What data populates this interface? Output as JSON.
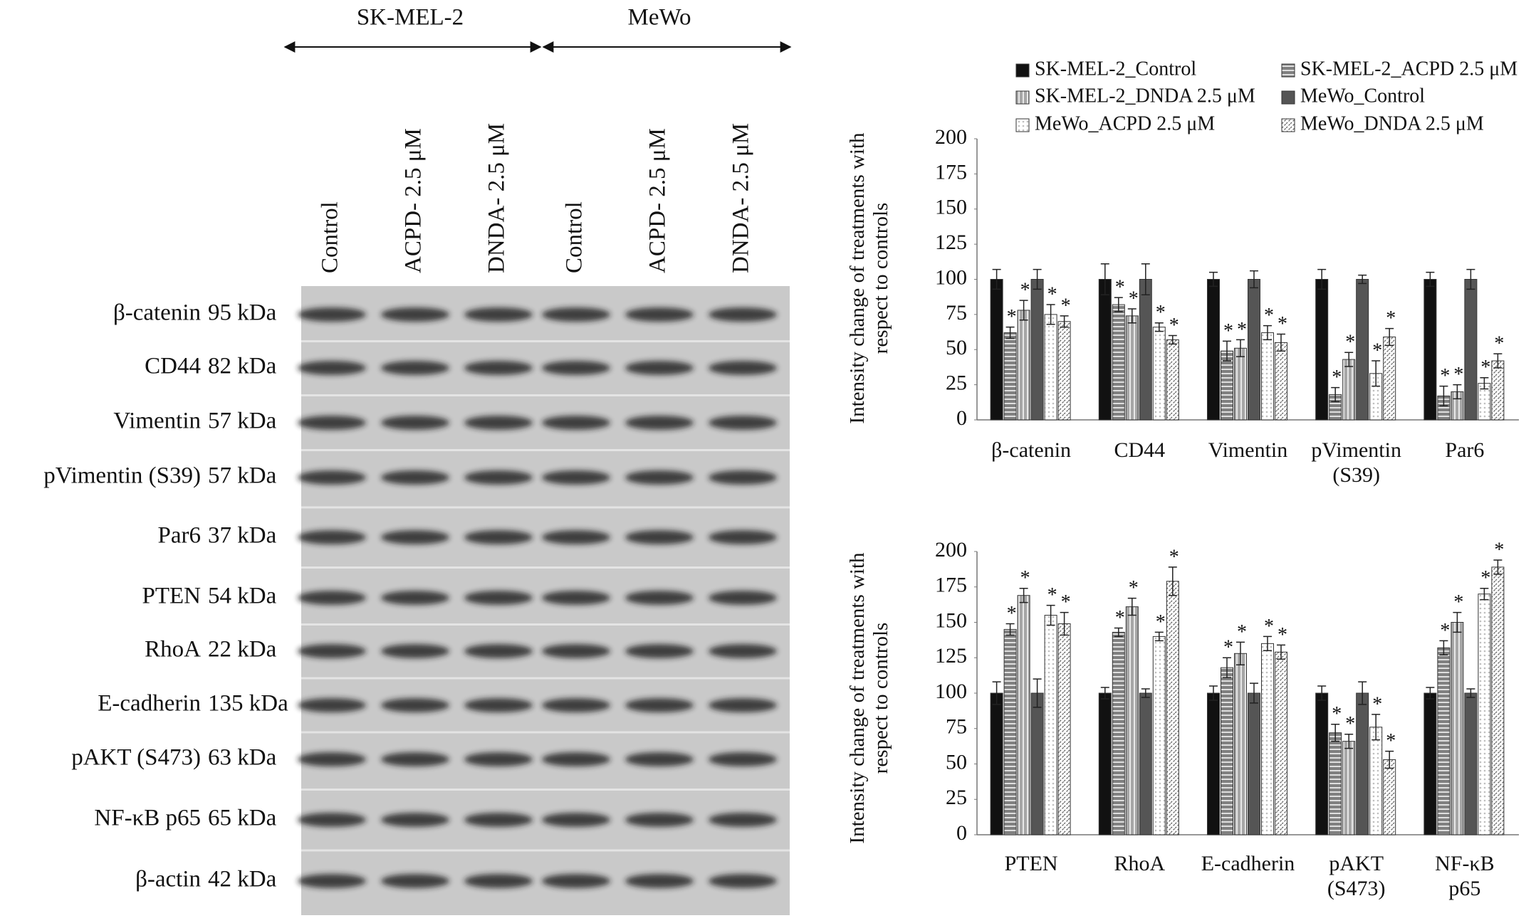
{
  "blot": {
    "groups": [
      "SK-MEL-2",
      "MeWo"
    ],
    "lanes": [
      "Control",
      "ACPD- 2.5 μM",
      "DNDA- 2.5 μM",
      "Control",
      "ACPD- 2.5 μM",
      "DNDA- 2.5 μM"
    ],
    "rows": [
      {
        "protein": "β-catenin",
        "size": "95 kDa"
      },
      {
        "protein": "CD44",
        "size": "82 kDa"
      },
      {
        "protein": "Vimentin",
        "size": "57 kDa"
      },
      {
        "protein": "pVimentin (S39)",
        "size": "57 kDa"
      },
      {
        "protein": "Par6",
        "size": "37 kDa"
      },
      {
        "protein": "PTEN",
        "size": "54 kDa"
      },
      {
        "protein": "RhoA",
        "size": "22 kDa"
      },
      {
        "protein": "E-cadherin",
        "size": "135 kDa"
      },
      {
        "protein": "pAKT (S473)",
        "size": "63 kDa"
      },
      {
        "protein": "NF-κB p65",
        "size": "65 kDa"
      },
      {
        "protein": "β-actin",
        "size": "42 kDa"
      }
    ]
  },
  "chart_data": [
    {
      "type": "bar",
      "y_label": "Intensity  change of treatments with\nrespect to controls",
      "categories": [
        "β-catenin",
        "CD44",
        "Vimentin",
        "pVimentin\n(S39)",
        "Par6"
      ],
      "legend": "top",
      "ylim": [
        0,
        200
      ],
      "yticks": [
        0,
        25,
        50,
        75,
        100,
        125,
        150,
        175,
        200
      ],
      "series": [
        {
          "name": "SK-MEL-2_Control",
          "color": "#111111",
          "pattern": "solid",
          "values": [
            100,
            100,
            100,
            100,
            100
          ],
          "errors": [
            7,
            11,
            5,
            7,
            5
          ]
        },
        {
          "name": "SK-MEL-2_ACPD 2.5 μM",
          "color": "#808080",
          "pattern": "horizontal",
          "values": [
            62,
            82,
            49,
            18,
            17
          ],
          "errors": [
            4,
            5,
            7,
            5,
            7
          ],
          "annotations": [
            "*",
            "*",
            "*",
            "*",
            "*"
          ]
        },
        {
          "name": "SK-MEL-2_DNDA 2.5 μM",
          "color": "#a6a6a6",
          "pattern": "vertical",
          "values": [
            78,
            74,
            51,
            43,
            20
          ],
          "errors": [
            7,
            5,
            6,
            5,
            5
          ],
          "annotations": [
            "*",
            "*",
            "*",
            "*",
            "*"
          ]
        },
        {
          "name": "MeWo_Control",
          "color": "#555555",
          "pattern": "solid",
          "values": [
            100,
            100,
            100,
            100,
            100
          ],
          "errors": [
            7,
            11,
            6,
            3,
            7
          ]
        },
        {
          "name": "MeWo_ACPD 2.5 μM",
          "color": "#bfbfbf",
          "pattern": "dots",
          "values": [
            75,
            66,
            62,
            33,
            26
          ],
          "errors": [
            7,
            3,
            5,
            9,
            4
          ],
          "annotations": [
            "*",
            "*",
            "*",
            "*",
            "*"
          ]
        },
        {
          "name": "MeWo_DNDA 2.5 μM",
          "color": "#666666",
          "pattern": "diagonal",
          "values": [
            70,
            57,
            55,
            59,
            42
          ],
          "errors": [
            4,
            3,
            6,
            6,
            5
          ],
          "annotations": [
            "*",
            "*",
            "*",
            "*",
            "*"
          ]
        }
      ]
    },
    {
      "type": "bar",
      "y_label": "Intensity  change of treatments with\nrespect to controls",
      "categories": [
        "PTEN",
        "RhoA",
        "E-cadherin",
        "pAKT\n(S473)",
        "NF-κB\np65"
      ],
      "ylim": [
        0,
        200
      ],
      "yticks": [
        0,
        25,
        50,
        75,
        100,
        125,
        150,
        175,
        200
      ],
      "series": [
        {
          "name": "SK-MEL-2_Control",
          "color": "#111111",
          "pattern": "solid",
          "values": [
            100,
            100,
            100,
            100,
            100
          ],
          "errors": [
            8,
            4,
            5,
            5,
            4
          ]
        },
        {
          "name": "SK-MEL-2_ACPD 2.5 μM",
          "color": "#808080",
          "pattern": "horizontal",
          "values": [
            145,
            143,
            118,
            72,
            132
          ],
          "errors": [
            4,
            3,
            7,
            6,
            5
          ],
          "annotations": [
            "*",
            "*",
            "*",
            "*",
            "*"
          ]
        },
        {
          "name": "SK-MEL-2_DNDA 2.5 μM",
          "color": "#a6a6a6",
          "pattern": "vertical",
          "values": [
            169,
            161,
            128,
            66,
            150
          ],
          "errors": [
            5,
            6,
            8,
            5,
            7
          ],
          "annotations": [
            "*",
            "*",
            "*",
            "*",
            "*"
          ]
        },
        {
          "name": "MeWo_Control",
          "color": "#555555",
          "pattern": "solid",
          "values": [
            100,
            100,
            100,
            100,
            100
          ],
          "errors": [
            10,
            3,
            7,
            8,
            3
          ]
        },
        {
          "name": "MeWo_ACPD 2.5 μM",
          "color": "#bfbfbf",
          "pattern": "dots",
          "values": [
            155,
            140,
            135,
            76,
            170
          ],
          "errors": [
            7,
            3,
            5,
            9,
            4
          ],
          "annotations": [
            "*",
            "*",
            "*",
            "*",
            "*"
          ]
        },
        {
          "name": "MeWo_DNDA 2.5 μM",
          "color": "#666666",
          "pattern": "diagonal",
          "values": [
            149,
            179,
            129,
            53,
            189
          ],
          "errors": [
            8,
            10,
            5,
            6,
            5
          ],
          "annotations": [
            "*",
            "*",
            "*",
            "*",
            "*"
          ]
        }
      ]
    }
  ]
}
